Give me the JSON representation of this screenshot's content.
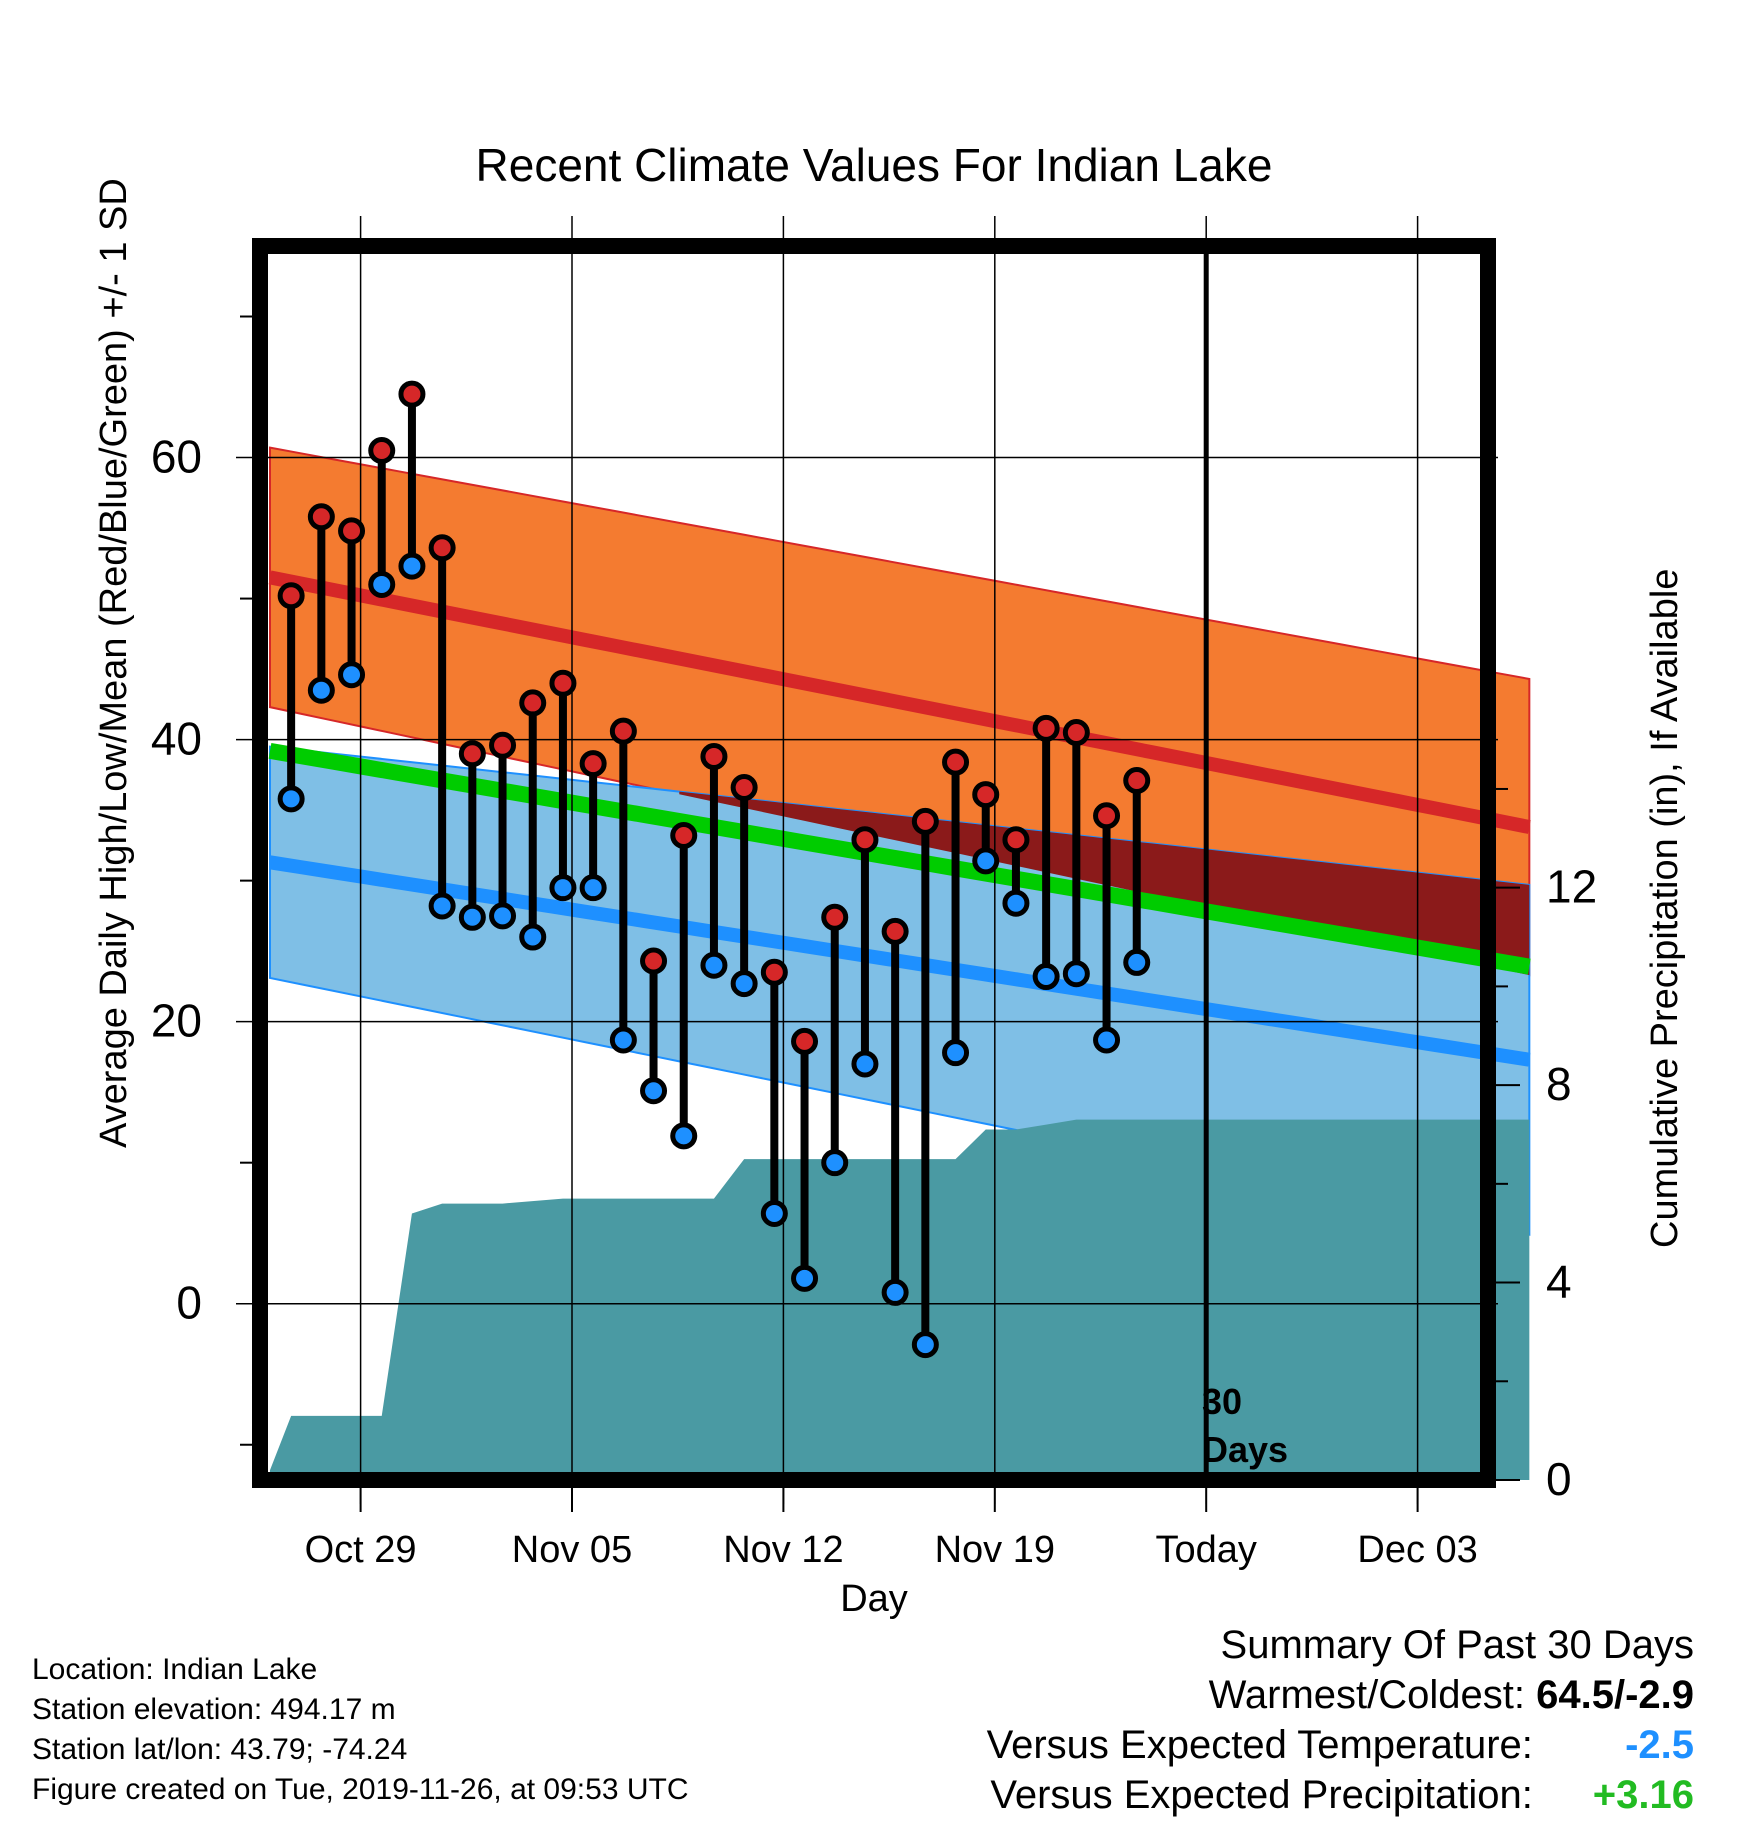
{
  "chart_data": {
    "type": "line",
    "title": "Recent Climate Values For Indian Lake",
    "xlabel": "Day",
    "ylabel": "Average Daily High/Low/Mean (Red/Blue/Green) +/- 1 SD",
    "y2label": "Cumulative Precipitation (in), If Available",
    "x_tick_labels": [
      "Oct 29",
      "Nov 05",
      "Nov 12",
      "Nov 19",
      "Today",
      "Dec 03"
    ],
    "x_tick_days": [
      3,
      10,
      17,
      24,
      31,
      38
    ],
    "x_range_days": [
      0,
      41.7
    ],
    "ylim": [
      -12.5,
      75
    ],
    "y_ticks": [
      0,
      20,
      40,
      60
    ],
    "y2lim": [
      0,
      25
    ],
    "y2_ticks": [
      0,
      4,
      8,
      12
    ],
    "today_day": 31,
    "today_annotation": [
      "30",
      "Days"
    ],
    "normals": {
      "high_mean": [
        51.5,
        33.8
      ],
      "high_sd": [
        9.2,
        10.5
      ],
      "low_mean": [
        31.3,
        17.3
      ],
      "low_sd": [
        8.2,
        12.4
      ],
      "mean_daily": [
        39.2,
        23.9
      ]
    },
    "observations": {
      "days": [
        0.7,
        1.7,
        2.7,
        3.7,
        4.7,
        5.7,
        6.7,
        7.7,
        8.7,
        9.7,
        10.7,
        11.7,
        12.7,
        13.7,
        14.7,
        15.7,
        16.7,
        17.7,
        18.7,
        19.7,
        20.7,
        21.7,
        22.7,
        23.7,
        24.7,
        25.7,
        26.7,
        27.7,
        28.7
      ],
      "highs": [
        50.2,
        55.8,
        54.8,
        60.5,
        64.5,
        53.6,
        39.0,
        39.6,
        42.6,
        44.0,
        38.3,
        40.6,
        24.3,
        33.2,
        38.8,
        36.6,
        23.5,
        18.6,
        27.4,
        32.9,
        26.4,
        34.2,
        38.4,
        36.1,
        32.9,
        40.8,
        40.5,
        34.6,
        37.1
      ],
      "lows": [
        35.8,
        43.5,
        44.6,
        51.0,
        52.3,
        28.2,
        27.4,
        27.5,
        26.0,
        29.5,
        29.5,
        18.7,
        15.1,
        11.9,
        24.0,
        22.7,
        6.4,
        1.8,
        10.0,
        17.0,
        0.8,
        -2.9,
        17.8,
        31.4,
        28.4,
        23.2,
        23.4,
        18.7,
        24.2
      ],
      "high_color": "#d62728",
      "low_color": "#1e90ff"
    },
    "precipitation_cumulative": {
      "days": [
        0,
        0.7,
        3.7,
        4.7,
        5.7,
        7.7,
        9.7,
        11.7,
        13.7,
        14.7,
        15.7,
        16.7,
        17.7,
        18.7,
        19.7,
        20.7,
        21.7,
        22.7,
        23.7,
        24.7,
        25.7,
        26.7,
        27.7,
        28.7,
        41.7
      ],
      "values": [
        0.2,
        1.3,
        1.3,
        5.4,
        5.6,
        5.6,
        5.7,
        5.7,
        5.7,
        5.7,
        6.5,
        6.5,
        6.5,
        6.5,
        6.5,
        6.5,
        6.5,
        6.5,
        7.1,
        7.1,
        7.2,
        7.3,
        7.3,
        7.3,
        7.3
      ]
    },
    "colors": {
      "high_band": "#f47b30",
      "high_line": "#d62728",
      "low_band": "#7fbfe6",
      "low_line": "#1e90ff",
      "mean_line": "#00cc00",
      "overlap_band": "#8b1a1a",
      "precip": "#4a9aa3"
    },
    "grid": true
  },
  "info": {
    "location": "Location: Indian Lake",
    "elevation": "Station elevation: 494.17 m",
    "latlon": "Station lat/lon: 43.79; -74.24",
    "created": "Figure created on Tue, 2019-11-26, at 09:53 UTC"
  },
  "summary": {
    "heading": "Summary Of Past 30 Days",
    "warmest_label": "Warmest/Coldest:",
    "warmest_value": "64.5/-2.9",
    "temp_label": "Versus Expected Temperature:",
    "temp_value": "-2.5",
    "temp_color": "#1e90ff",
    "precip_label": "Versus Expected Precipitation:",
    "precip_value": "+3.16",
    "precip_color": "#22bb22"
  }
}
